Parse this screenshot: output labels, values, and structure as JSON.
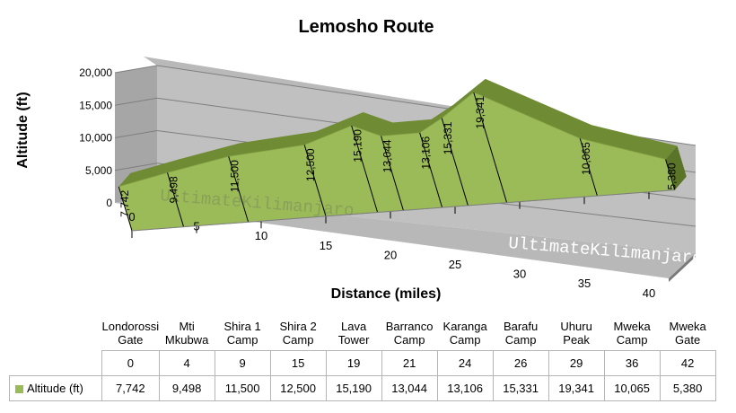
{
  "chart_data": {
    "type": "area",
    "title": "Lemosho Route",
    "xlabel": "Distance (miles)",
    "ylabel": "Altitude (ft)",
    "ylim": [
      0,
      20000
    ],
    "yticks": [
      "0",
      "5,000",
      "10,000",
      "15,000",
      "20,000"
    ],
    "xlim": [
      0,
      42
    ],
    "xticks": [
      "0",
      "5",
      "10",
      "15",
      "20",
      "25",
      "30",
      "35",
      "40"
    ],
    "grid": true,
    "style": "3d-area",
    "series": [
      {
        "name": "Altitude (ft)",
        "color": "#9bbb59",
        "x": [
          0,
          4,
          9,
          15,
          19,
          21,
          24,
          26,
          29,
          36,
          42
        ],
        "y": [
          7742,
          9498,
          11500,
          12500,
          15190,
          13044,
          13106,
          15331,
          19341,
          10065,
          5380
        ],
        "labels": [
          "7,742",
          "9,498",
          "11,500",
          "12,500",
          "15,190",
          "13,044",
          "13,106",
          "15,331",
          "19,341",
          "10,065",
          "5,380"
        ]
      }
    ],
    "watermark": "UltimateKilimanjaro"
  },
  "table": {
    "camps": [
      [
        "Londorossi",
        "Gate"
      ],
      [
        "Mti",
        "Mkubwa"
      ],
      [
        "Shira 1",
        "Camp"
      ],
      [
        "Shira 2",
        "Camp"
      ],
      [
        "Lava",
        "Tower"
      ],
      [
        "Barranco",
        "Camp"
      ],
      [
        "Karanga",
        "Camp"
      ],
      [
        "Barafu",
        "Camp"
      ],
      [
        "Uhuru",
        "Peak"
      ],
      [
        "Mweka",
        "Camp"
      ],
      [
        "Mweka",
        "Gate"
      ]
    ],
    "miles": [
      "0",
      "4",
      "9",
      "15",
      "19",
      "21",
      "24",
      "26",
      "29",
      "36",
      "42"
    ],
    "series_label": "Altitude (ft)",
    "altitudes": [
      "7,742",
      "9,498",
      "11,500",
      "12,500",
      "15,190",
      "13,044",
      "13,106",
      "15,331",
      "19,341",
      "10,065",
      "5,380"
    ]
  }
}
